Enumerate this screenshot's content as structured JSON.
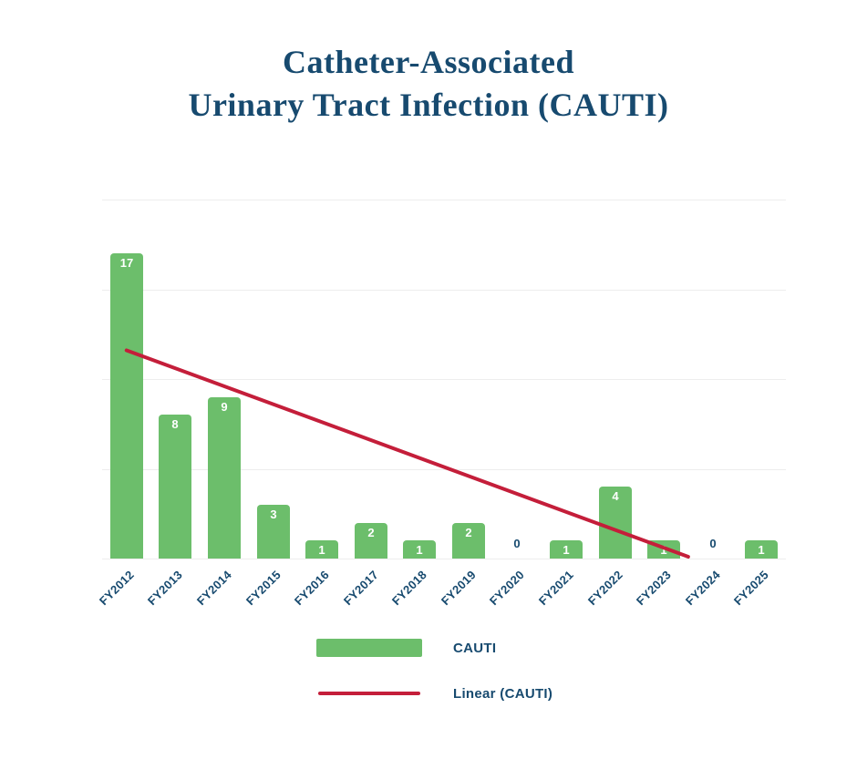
{
  "title": {
    "line1": "Catheter-Associated",
    "line2": "Urinary Tract Infection (CAUTI)"
  },
  "colors": {
    "navy": "#174A6F",
    "green": "#6CBE6B",
    "red": "#C41E3A",
    "gridline": "#EDEDED",
    "bar_value_label": "#FFFFFF"
  },
  "chart_data": {
    "type": "bar",
    "title": "Catheter-Associated Urinary Tract Infection (CAUTI)",
    "categories": [
      "FY2012",
      "FY2013",
      "FY2014",
      "FY2015",
      "FY2016",
      "FY2017",
      "FY2018",
      "FY2019",
      "FY2020",
      "FY2021",
      "FY2022",
      "FY2023",
      "FY2024",
      "FY2025"
    ],
    "values": [
      17,
      8,
      9,
      3,
      1,
      2,
      1,
      2,
      0,
      1,
      4,
      1,
      0,
      1
    ],
    "series_name": "CAUTI",
    "xlabel": "",
    "ylabel": "",
    "ylim": [
      0,
      20
    ],
    "gridline_step": 5,
    "grid": "horizontal gridlines only, no y-axis tick labels",
    "data_labels": "value shown in white at top of each bar; zeros shown in navy above axis",
    "legend_position": "below chart",
    "trend": {
      "label": "Linear (CAUTI)",
      "start_index": 0,
      "start_value": 11.6,
      "end_index": 11.5,
      "end_value": 0.1
    }
  },
  "legend": {
    "items": [
      {
        "label": "CAUTI"
      },
      {
        "label": "Linear (CAUTI)"
      }
    ]
  }
}
